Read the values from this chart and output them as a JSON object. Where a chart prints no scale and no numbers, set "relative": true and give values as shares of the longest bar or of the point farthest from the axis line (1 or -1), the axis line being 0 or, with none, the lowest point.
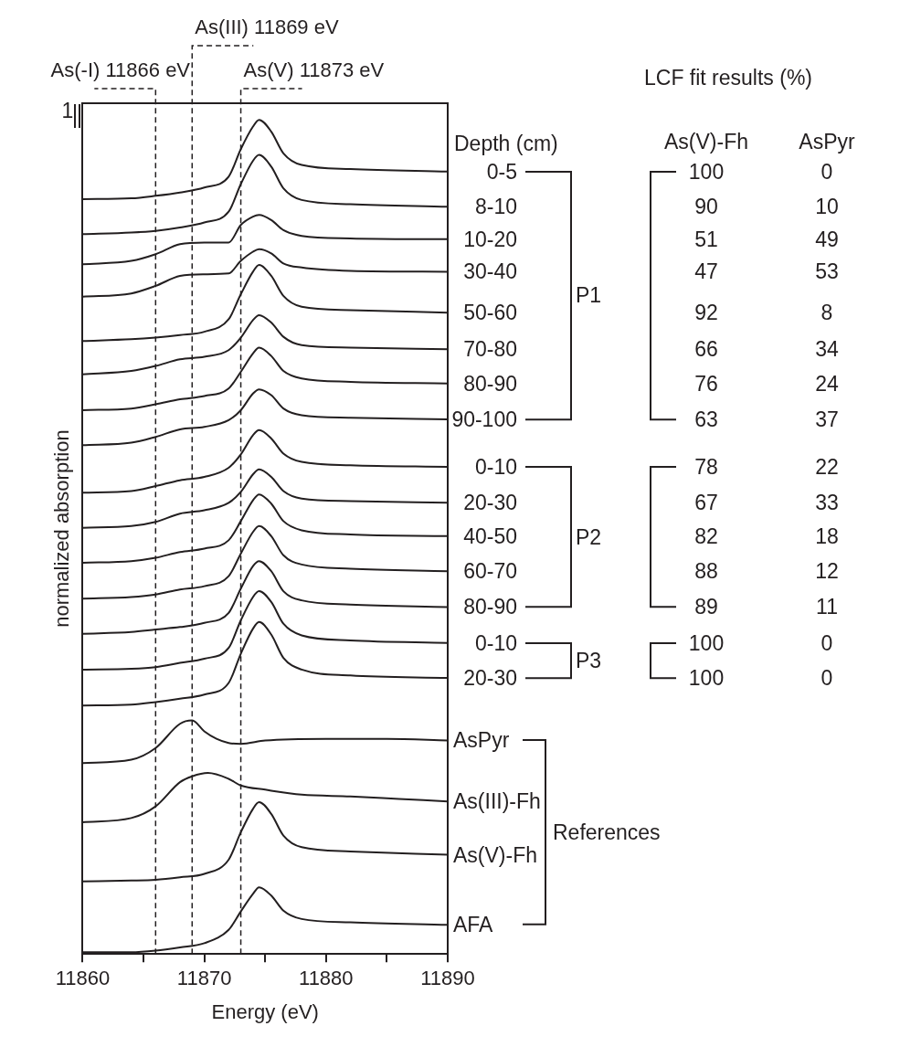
{
  "chart_data": {
    "type": "line",
    "xlabel": "Energy (eV)",
    "ylabel": "normalized absorption",
    "relative": true,
    "xlim": [
      11860,
      11890
    ],
    "xticks": [
      11860,
      {
        "value": 11865,
        "label": null
      },
      11870,
      {
        "value": 11875,
        "label": null
      },
      11880,
      {
        "value": 11885,
        "label": null
      },
      11890
    ],
    "grid": false,
    "legend": false,
    "marker": "none",
    "line_style": "solid",
    "ref_lines": [
      {
        "axis": "x",
        "value": 11866,
        "label": "As(-I) 11866 eV",
        "color": "#231f20",
        "line_style": "dashed"
      },
      {
        "axis": "x",
        "value": 11869,
        "label": "As(III) 11869 eV",
        "color": "#231f20",
        "line_style": "dashed"
      },
      {
        "axis": "x",
        "value": 11873,
        "label": "As(V) 11873 eV",
        "color": "#231f20",
        "line_style": "dashed"
      }
    ],
    "annotations": [
      "1",
      "Depth (cm)",
      "LCF fit results (%)",
      "As(V)-Fh",
      "AsPyr",
      "P1",
      "P2",
      "P3",
      "References",
      "100",
      "0",
      "90",
      "10",
      "51",
      "49",
      "47",
      "53",
      "92",
      "8",
      "66",
      "34",
      "76",
      "24",
      "63",
      "37",
      "78",
      "22",
      "67",
      "33",
      "82",
      "18",
      "88",
      "12",
      "89",
      "11",
      "100",
      "0",
      "100",
      "0"
    ],
    "series": [
      {
        "name": "0-5",
        "color": "#231f20",
        "x": [
          11860,
          11864,
          11866,
          11868,
          11870,
          11872,
          11873,
          11874,
          11874.5,
          11875.5,
          11876.5,
          11878,
          11882,
          11890
        ],
        "values": [
          0.905,
          0.906,
          0.909,
          0.913,
          0.919,
          0.932,
          0.965,
          0.992,
          1.0,
          0.986,
          0.96,
          0.946,
          0.941,
          0.938
        ]
      },
      {
        "name": "8-10",
        "color": "#231f20",
        "x": [
          11860,
          11864,
          11866,
          11868,
          11870,
          11872,
          11873,
          11874,
          11874.5,
          11875.5,
          11876.5,
          11878,
          11882,
          11890
        ],
        "values": [
          0.863,
          0.865,
          0.867,
          0.871,
          0.877,
          0.89,
          0.923,
          0.951,
          0.958,
          0.944,
          0.918,
          0.904,
          0.899,
          0.896
        ]
      },
      {
        "name": "10-20",
        "color": "#231f20",
        "x": [
          11860,
          11864,
          11866,
          11868,
          11870,
          11872,
          11873,
          11874,
          11874.5,
          11875.5,
          11876.5,
          11878,
          11882,
          11890
        ],
        "values": [
          0.827,
          0.831,
          0.839,
          0.851,
          0.853,
          0.853,
          0.874,
          0.884,
          0.886,
          0.88,
          0.868,
          0.861,
          0.858,
          0.857
        ]
      },
      {
        "name": "30-40",
        "color": "#231f20",
        "x": [
          11860,
          11864,
          11866,
          11868,
          11870,
          11872,
          11873,
          11874,
          11874.5,
          11875.5,
          11876.5,
          11878,
          11882,
          11890
        ],
        "values": [
          0.788,
          0.792,
          0.801,
          0.813,
          0.815,
          0.816,
          0.831,
          0.842,
          0.845,
          0.84,
          0.828,
          0.823,
          0.819,
          0.818
        ]
      },
      {
        "name": "50-60",
        "color": "#231f20",
        "x": [
          11860,
          11864,
          11866,
          11868,
          11870,
          11872,
          11873,
          11874,
          11874.5,
          11875.5,
          11876.5,
          11878,
          11882,
          11890
        ],
        "values": [
          0.735,
          0.737,
          0.739,
          0.742,
          0.746,
          0.761,
          0.791,
          0.818,
          0.826,
          0.813,
          0.789,
          0.776,
          0.772,
          0.769
        ]
      },
      {
        "name": "70-80",
        "color": "#231f20",
        "x": [
          11860,
          11864,
          11866,
          11868,
          11870,
          11872,
          11873,
          11874,
          11874.5,
          11875.5,
          11876.5,
          11878,
          11882,
          11890
        ],
        "values": [
          0.695,
          0.699,
          0.705,
          0.713,
          0.716,
          0.724,
          0.739,
          0.76,
          0.766,
          0.757,
          0.74,
          0.73,
          0.727,
          0.725
        ]
      },
      {
        "name": "80-90",
        "color": "#231f20",
        "x": [
          11860,
          11864,
          11866,
          11868,
          11870,
          11872,
          11873,
          11874,
          11874.5,
          11875.5,
          11876.5,
          11878,
          11882,
          11890
        ],
        "values": [
          0.652,
          0.654,
          0.659,
          0.665,
          0.669,
          0.678,
          0.698,
          0.72,
          0.727,
          0.717,
          0.699,
          0.69,
          0.686,
          0.684
        ]
      },
      {
        "name": "90-100",
        "color": "#231f20",
        "x": [
          11860,
          11864,
          11866,
          11868,
          11870,
          11872,
          11873,
          11874,
          11874.5,
          11875.5,
          11876.5,
          11878,
          11882,
          11890
        ],
        "values": [
          0.61,
          0.613,
          0.62,
          0.629,
          0.632,
          0.64,
          0.652,
          0.672,
          0.677,
          0.67,
          0.654,
          0.646,
          0.643,
          0.641
        ]
      },
      {
        "name": "0-10",
        "color": "#231f20",
        "x": [
          11860,
          11864,
          11866,
          11868,
          11870,
          11872,
          11873,
          11874,
          11874.5,
          11875.5,
          11876.5,
          11878,
          11882,
          11890
        ],
        "values": [
          0.553,
          0.555,
          0.561,
          0.568,
          0.572,
          0.583,
          0.599,
          0.622,
          0.628,
          0.618,
          0.6,
          0.59,
          0.586,
          0.584
        ]
      },
      {
        "name": "20-30",
        "color": "#231f20",
        "x": [
          11860,
          11864,
          11866,
          11868,
          11870,
          11872,
          11873,
          11874,
          11874.5,
          11875.5,
          11876.5,
          11878,
          11882,
          11890
        ],
        "values": [
          0.511,
          0.513,
          0.518,
          0.528,
          0.532,
          0.541,
          0.554,
          0.575,
          0.581,
          0.572,
          0.555,
          0.546,
          0.543,
          0.541
        ]
      },
      {
        "name": "40-50",
        "color": "#231f20",
        "x": [
          11860,
          11864,
          11866,
          11868,
          11870,
          11872,
          11873,
          11874,
          11874.5,
          11875.5,
          11876.5,
          11878,
          11882,
          11890
        ],
        "values": [
          0.469,
          0.471,
          0.475,
          0.482,
          0.486,
          0.496,
          0.519,
          0.544,
          0.551,
          0.54,
          0.519,
          0.508,
          0.503,
          0.501
        ]
      },
      {
        "name": "60-70",
        "color": "#231f20",
        "x": [
          11860,
          11864,
          11866,
          11868,
          11870,
          11872,
          11873,
          11874,
          11874.5,
          11875.5,
          11876.5,
          11878,
          11882,
          11890
        ],
        "values": [
          0.426,
          0.428,
          0.431,
          0.437,
          0.441,
          0.453,
          0.48,
          0.506,
          0.513,
          0.501,
          0.478,
          0.467,
          0.462,
          0.459
        ]
      },
      {
        "name": "80-90",
        "color": "#231f20",
        "x": [
          11860,
          11864,
          11866,
          11868,
          11870,
          11872,
          11873,
          11874,
          11874.5,
          11875.5,
          11876.5,
          11878,
          11882,
          11890
        ],
        "values": [
          0.384,
          0.386,
          0.389,
          0.392,
          0.397,
          0.409,
          0.438,
          0.465,
          0.471,
          0.459,
          0.435,
          0.424,
          0.419,
          0.416
        ]
      },
      {
        "name": "0-10",
        "color": "#231f20",
        "x": [
          11860,
          11864,
          11866,
          11868,
          11870,
          11872,
          11873,
          11874,
          11874.5,
          11875.5,
          11876.5,
          11878,
          11882,
          11890
        ],
        "values": [
          0.341,
          0.342,
          0.344,
          0.349,
          0.354,
          0.367,
          0.4,
          0.428,
          0.435,
          0.422,
          0.396,
          0.382,
          0.376,
          0.373
        ]
      },
      {
        "name": "20-30",
        "color": "#231f20",
        "x": [
          11860,
          11864,
          11866,
          11868,
          11870,
          11872,
          11873,
          11874,
          11874.5,
          11875.5,
          11876.5,
          11878,
          11882,
          11890
        ],
        "values": [
          0.298,
          0.299,
          0.302,
          0.306,
          0.311,
          0.325,
          0.36,
          0.39,
          0.398,
          0.383,
          0.355,
          0.341,
          0.334,
          0.331
        ]
      },
      {
        "name": "AsPyr",
        "color": "#231f20",
        "x": [
          11860,
          11864,
          11866,
          11868,
          11869,
          11870,
          11871,
          11872,
          11873,
          11875,
          11880,
          11885,
          11890
        ],
        "values": [
          0.229,
          0.233,
          0.247,
          0.276,
          0.28,
          0.267,
          0.258,
          0.253,
          0.252,
          0.256,
          0.258,
          0.258,
          0.256
        ]
      },
      {
        "name": "As(III)-Fh",
        "color": "#231f20",
        "x": [
          11860,
          11864,
          11866,
          11868,
          11869,
          11870.3,
          11872,
          11873,
          11875,
          11878,
          11882,
          11886,
          11890
        ],
        "values": [
          0.158,
          0.163,
          0.177,
          0.206,
          0.213,
          0.217,
          0.21,
          0.202,
          0.197,
          0.191,
          0.189,
          0.186,
          0.183
        ]
      },
      {
        "name": "As(V)-Fh",
        "color": "#231f20",
        "x": [
          11860,
          11864,
          11866,
          11868,
          11870,
          11872,
          11873,
          11874,
          11874.5,
          11875.5,
          11876.5,
          11878,
          11882,
          11890
        ],
        "values": [
          0.087,
          0.088,
          0.089,
          0.092,
          0.096,
          0.113,
          0.146,
          0.174,
          0.182,
          0.168,
          0.142,
          0.128,
          0.123,
          0.119
        ]
      },
      {
        "name": "AFA",
        "color": "#231f20",
        "x": [
          11860,
          11864,
          11866,
          11868,
          11870,
          11872,
          11873,
          11874,
          11874.5,
          11875.5,
          11876.5,
          11878,
          11882,
          11890
        ],
        "values": [
          0.002,
          0.002,
          0.004,
          0.008,
          0.013,
          0.029,
          0.051,
          0.072,
          0.08,
          0.07,
          0.052,
          0.042,
          0.038,
          0.035
        ]
      }
    ]
  }
}
